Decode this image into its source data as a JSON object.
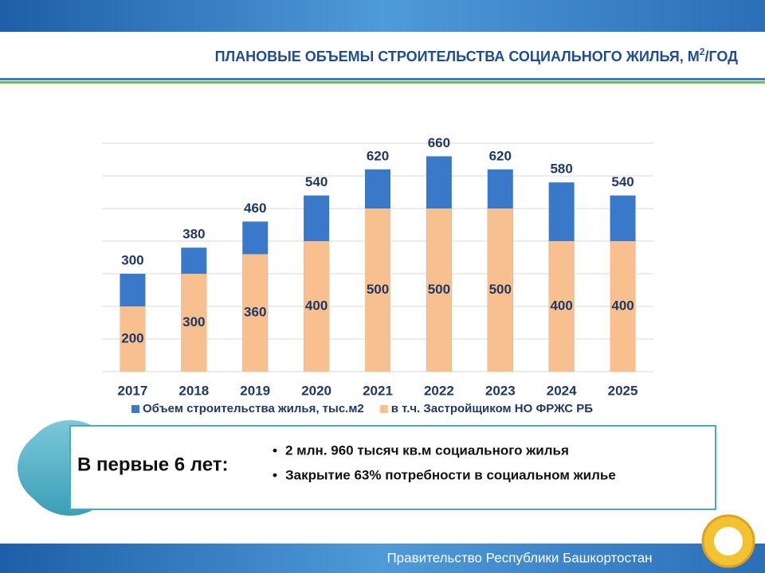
{
  "chart_data": {
    "type": "bar",
    "title": [
      "ПЛАНОВЫЕ ОБЪЕМЫ СТРОИТЕЛЬСТВА СОЦИАЛЬНОГО ЖИЛЬЯ, М",
      "2",
      "/ГОД"
    ],
    "categories": [
      "2017",
      "2018",
      "2019",
      "2020",
      "2021",
      "2022",
      "2023",
      "2024",
      "2025"
    ],
    "series": [
      {
        "name": "Объем строительства жилья, тыс.м2",
        "color": "#3a78c9",
        "values": [
          300,
          380,
          460,
          540,
          620,
          660,
          620,
          580,
          540
        ]
      },
      {
        "name": "в т.ч. Застройщиком НО ФРЖС РБ",
        "color": "#f9c08f",
        "values": [
          200,
          300,
          360,
          400,
          500,
          500,
          500,
          400,
          400
        ]
      }
    ],
    "ylim": [
      0,
      700
    ],
    "yticks": [
      0,
      100,
      200,
      300,
      400,
      500,
      600,
      700
    ],
    "grid": true,
    "legend": "bottom"
  },
  "summary": {
    "heading": "В первые 6 лет:",
    "bullets": [
      "2 млн. 960 тысяч кв.м социального жилья",
      "Закрытие 63% потребности в социальном жилье"
    ]
  },
  "footer": "Правительство Республики Башкортостан"
}
